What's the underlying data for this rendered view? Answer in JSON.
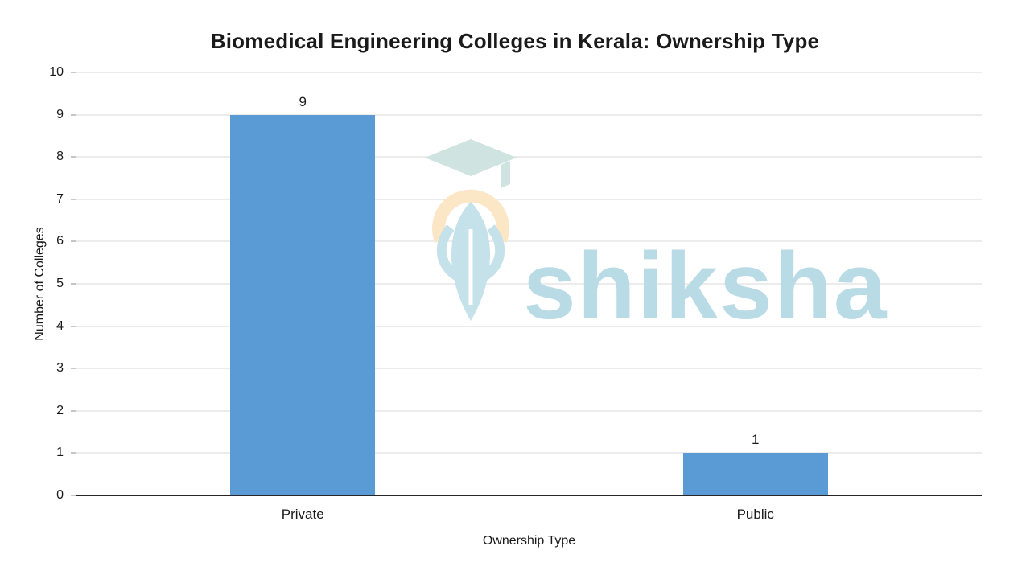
{
  "chart_data": {
    "type": "bar",
    "title": "Biomedical Engineering Colleges in Kerala: Ownership Type",
    "categories": [
      "Private",
      "Public"
    ],
    "values": [
      9,
      1
    ],
    "data_labels": [
      "9",
      "1"
    ],
    "xlabel": "Ownership Type",
    "ylabel": "Number of Colleges",
    "ylim": [
      0,
      10
    ],
    "ytick_step": 1,
    "yticks": [
      0,
      1,
      2,
      3,
      4,
      5,
      6,
      7,
      8,
      9,
      10
    ],
    "grid": true,
    "legend_position": "none",
    "bar_color": "#5b9bd5",
    "gridline_color": "#d9d9d9",
    "axis_line_color": "#262626"
  },
  "watermark": {
    "text": "shiksha",
    "color": "#b9dbe6",
    "logo_colors": {
      "cap": "#cfe3e0",
      "arc": "#fbe6c6",
      "feather": "#c5e1ea",
      "quill": "#ffffff"
    }
  }
}
